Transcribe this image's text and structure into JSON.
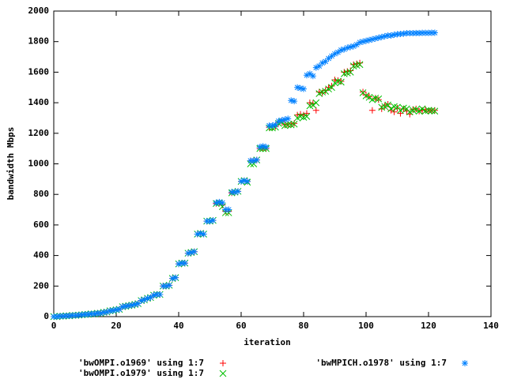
{
  "chart_data": {
    "type": "scatter",
    "x_label": "iteration",
    "y_label": "bandwidth Mbps",
    "xlim": [
      0,
      140
    ],
    "xticks": [
      0,
      20,
      40,
      60,
      80,
      100,
      120,
      140
    ],
    "ylim": [
      0,
      2000
    ],
    "yticks": [
      0,
      200,
      400,
      600,
      800,
      1000,
      1200,
      1400,
      1600,
      1800,
      2000
    ],
    "legend": "below",
    "x": [
      0,
      1,
      2,
      3,
      4,
      5,
      6,
      7,
      8,
      9,
      10,
      11,
      12,
      13,
      14,
      15,
      16,
      17,
      18,
      19,
      20,
      21,
      22,
      23,
      24,
      25,
      26,
      27,
      28,
      29,
      30,
      31,
      32,
      33,
      34,
      35,
      36,
      37,
      38,
      39,
      40,
      41,
      42,
      43,
      44,
      45,
      46,
      47,
      48,
      49,
      50,
      51,
      52,
      53,
      54,
      55,
      56,
      57,
      58,
      59,
      60,
      61,
      62,
      63,
      64,
      65,
      66,
      67,
      68,
      69,
      70,
      71,
      72,
      73,
      74,
      75,
      76,
      77,
      78,
      79,
      80,
      81,
      82,
      83,
      84,
      85,
      86,
      87,
      88,
      89,
      90,
      91,
      92,
      93,
      94,
      95,
      96,
      97,
      98,
      99,
      100,
      101,
      102,
      103,
      104,
      105,
      106,
      107,
      108,
      109,
      110,
      111,
      112,
      113,
      114,
      115,
      116,
      117,
      118,
      119,
      120,
      121,
      122
    ],
    "series": [
      {
        "name": "'bwOMPI.o1969' using 1:7",
        "color": "#ff0000",
        "marker": "plus",
        "values": [
          0,
          0,
          3,
          3,
          5,
          5,
          8,
          8,
          10,
          12,
          14,
          15,
          18,
          18,
          22,
          22,
          28,
          30,
          38,
          40,
          45,
          48,
          65,
          68,
          72,
          75,
          80,
          85,
          105,
          110,
          120,
          125,
          140,
          145,
          145,
          200,
          200,
          205,
          250,
          255,
          345,
          350,
          350,
          415,
          420,
          425,
          540,
          545,
          540,
          625,
          625,
          630,
          740,
          745,
          730,
          690,
          690,
          810,
          815,
          820,
          885,
          890,
          885,
          1020,
          1020,
          1025,
          1100,
          1105,
          1100,
          1240,
          1240,
          1245,
          1270,
          1280,
          1255,
          1260,
          1260,
          1265,
          1320,
          1325,
          1320,
          1330,
          1400,
          1395,
          1350,
          1470,
          1465,
          1480,
          1500,
          1510,
          1550,
          1545,
          1540,
          1600,
          1605,
          1610,
          1650,
          1655,
          1660,
          1470,
          1450,
          1440,
          1350,
          1430,
          1420,
          1360,
          1380,
          1390,
          1350,
          1340,
          1365,
          1330,
          1360,
          1345,
          1325,
          1355,
          1360,
          1345,
          1350,
          1355,
          1345,
          1350,
          1350
        ]
      },
      {
        "name": "'bwOMPI.o1979' using 1:7",
        "color": "#00c000",
        "marker": "cross",
        "values": [
          0,
          0,
          3,
          3,
          5,
          5,
          8,
          8,
          10,
          12,
          14,
          15,
          18,
          18,
          22,
          22,
          28,
          30,
          38,
          40,
          45,
          48,
          65,
          68,
          72,
          75,
          80,
          85,
          105,
          110,
          120,
          125,
          140,
          145,
          145,
          200,
          200,
          205,
          250,
          255,
          345,
          350,
          350,
          415,
          420,
          425,
          540,
          545,
          540,
          625,
          625,
          630,
          740,
          745,
          720,
          680,
          680,
          810,
          815,
          820,
          885,
          890,
          880,
          1000,
          1000,
          1025,
          1100,
          1100,
          1100,
          1235,
          1235,
          1240,
          1265,
          1275,
          1250,
          1255,
          1255,
          1260,
          1300,
          1310,
          1305,
          1310,
          1380,
          1385,
          1400,
          1460,
          1470,
          1475,
          1490,
          1500,
          1530,
          1540,
          1535,
          1590,
          1595,
          1600,
          1640,
          1645,
          1650,
          1465,
          1445,
          1435,
          1420,
          1430,
          1425,
          1370,
          1375,
          1385,
          1360,
          1375,
          1370,
          1350,
          1365,
          1360,
          1340,
          1350,
          1355,
          1345,
          1360,
          1345,
          1350,
          1348,
          1345
        ]
      },
      {
        "name": "'bwMPICH.o1978' using 1:7",
        "color": "#0080ff",
        "marker": "star",
        "values": [
          0,
          0,
          3,
          3,
          5,
          5,
          8,
          8,
          10,
          12,
          14,
          15,
          18,
          18,
          22,
          22,
          28,
          30,
          38,
          40,
          45,
          48,
          65,
          68,
          72,
          75,
          80,
          85,
          105,
          110,
          120,
          125,
          140,
          145,
          145,
          200,
          200,
          205,
          250,
          255,
          345,
          350,
          350,
          415,
          420,
          425,
          540,
          545,
          540,
          625,
          625,
          630,
          745,
          750,
          745,
          700,
          700,
          815,
          815,
          820,
          885,
          890,
          885,
          1020,
          1020,
          1025,
          1110,
          1115,
          1110,
          1250,
          1250,
          1255,
          1280,
          1285,
          1290,
          1295,
          1415,
          1410,
          1500,
          1495,
          1490,
          1580,
          1590,
          1575,
          1630,
          1640,
          1660,
          1670,
          1690,
          1705,
          1720,
          1730,
          1745,
          1750,
          1760,
          1765,
          1770,
          1780,
          1795,
          1800,
          1805,
          1810,
          1815,
          1820,
          1825,
          1830,
          1835,
          1840,
          1840,
          1845,
          1848,
          1850,
          1852,
          1855,
          1855,
          1855,
          1856,
          1856,
          1857,
          1857,
          1857,
          1858,
          1858
        ]
      }
    ]
  }
}
